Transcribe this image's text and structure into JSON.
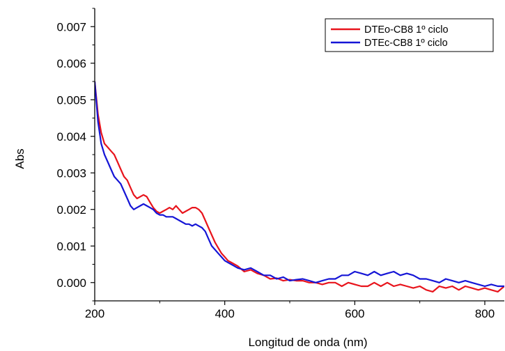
{
  "chart_data": {
    "type": "line",
    "xlabel": "Longitud de onda (nm)",
    "ylabel": "Abs",
    "xlim": [
      200,
      830
    ],
    "ylim": [
      -0.0005,
      0.0075
    ],
    "x_ticks": [
      200,
      400,
      600,
      800
    ],
    "x_tick_labels": [
      "200",
      "400",
      "600",
      "800"
    ],
    "y_ticks": [
      0.0,
      0.001,
      0.002,
      0.003,
      0.004,
      0.005,
      0.006,
      0.007
    ],
    "y_tick_labels": [
      "0.000",
      "0.001",
      "0.002",
      "0.003",
      "0.004",
      "0.005",
      "0.006",
      "0.007"
    ],
    "grid": false,
    "legend_position": "top-right",
    "series": [
      {
        "name": "DTEo-CB8 1º ciclo",
        "color": "#e8141c",
        "x": [
          200,
          205,
          210,
          215,
          220,
          225,
          230,
          235,
          240,
          245,
          250,
          255,
          260,
          265,
          270,
          275,
          280,
          285,
          290,
          295,
          300,
          305,
          310,
          315,
          320,
          325,
          330,
          335,
          340,
          345,
          350,
          355,
          360,
          365,
          370,
          375,
          380,
          385,
          390,
          395,
          400,
          405,
          410,
          420,
          430,
          440,
          450,
          460,
          470,
          480,
          490,
          500,
          510,
          520,
          530,
          540,
          550,
          560,
          570,
          580,
          590,
          600,
          610,
          620,
          630,
          640,
          650,
          660,
          670,
          680,
          690,
          700,
          710,
          720,
          730,
          740,
          750,
          760,
          770,
          780,
          790,
          800,
          810,
          820,
          830
        ],
        "y": [
          0.0055,
          0.0046,
          0.0041,
          0.0038,
          0.0037,
          0.0036,
          0.0035,
          0.0033,
          0.0031,
          0.0029,
          0.0028,
          0.0026,
          0.0024,
          0.0023,
          0.00235,
          0.0024,
          0.00235,
          0.0022,
          0.00205,
          0.00195,
          0.0019,
          0.00195,
          0.002,
          0.00205,
          0.002,
          0.0021,
          0.002,
          0.0019,
          0.00195,
          0.002,
          0.00205,
          0.00205,
          0.002,
          0.0019,
          0.0017,
          0.0015,
          0.0013,
          0.0011,
          0.00095,
          0.0008,
          0.0007,
          0.0006,
          0.00055,
          0.00045,
          0.0003,
          0.00035,
          0.00025,
          0.0002,
          0.0001,
          0.00012,
          5e-05,
          8e-05,
          5e-05,
          5e-05,
          0.0,
          0.0,
          -5e-05,
          0.0,
          0.0,
          -0.0001,
          0.0,
          -5e-05,
          -0.0001,
          -0.0001,
          0.0,
          -0.0001,
          0.0,
          -0.0001,
          -5e-05,
          -0.0001,
          -0.00015,
          -0.0001,
          -0.0002,
          -0.00025,
          -0.0001,
          -0.00015,
          -0.0001,
          -0.0002,
          -0.0001,
          -0.00015,
          -0.0002,
          -0.00015,
          -0.0002,
          -0.00025,
          -0.0001
        ]
      },
      {
        "name": "DTEc-CB8 1º ciclo",
        "color": "#1515d6",
        "x": [
          200,
          205,
          210,
          215,
          220,
          225,
          230,
          235,
          240,
          245,
          250,
          255,
          260,
          265,
          270,
          275,
          280,
          285,
          290,
          295,
          300,
          305,
          310,
          315,
          320,
          325,
          330,
          335,
          340,
          345,
          350,
          355,
          360,
          365,
          370,
          375,
          380,
          385,
          390,
          395,
          400,
          405,
          410,
          420,
          430,
          440,
          450,
          460,
          470,
          480,
          490,
          500,
          510,
          520,
          530,
          540,
          550,
          560,
          570,
          580,
          590,
          600,
          610,
          620,
          630,
          640,
          650,
          660,
          670,
          680,
          690,
          700,
          710,
          720,
          730,
          740,
          750,
          760,
          770,
          780,
          790,
          800,
          810,
          820,
          830
        ],
        "y": [
          0.0055,
          0.0044,
          0.0038,
          0.0035,
          0.0033,
          0.0031,
          0.0029,
          0.0028,
          0.0027,
          0.0025,
          0.0023,
          0.0021,
          0.002,
          0.00205,
          0.0021,
          0.00215,
          0.0021,
          0.00205,
          0.002,
          0.0019,
          0.00185,
          0.00185,
          0.0018,
          0.0018,
          0.0018,
          0.00175,
          0.0017,
          0.00165,
          0.0016,
          0.0016,
          0.00155,
          0.0016,
          0.00155,
          0.0015,
          0.0014,
          0.0012,
          0.001,
          0.0009,
          0.0008,
          0.0007,
          0.0006,
          0.00055,
          0.0005,
          0.0004,
          0.00035,
          0.0004,
          0.0003,
          0.0002,
          0.0002,
          0.0001,
          0.00015,
          5e-05,
          8e-05,
          0.0001,
          5e-05,
          0.0,
          5e-05,
          0.0001,
          0.0001,
          0.0002,
          0.0002,
          0.0003,
          0.00025,
          0.0002,
          0.0003,
          0.0002,
          0.00025,
          0.0003,
          0.0002,
          0.00025,
          0.0002,
          0.0001,
          0.0001,
          5e-05,
          0.0,
          0.0001,
          5e-05,
          0.0,
          5e-05,
          0.0,
          -5e-05,
          -0.0001,
          -5e-05,
          -0.0001,
          -0.0001
        ]
      }
    ]
  }
}
